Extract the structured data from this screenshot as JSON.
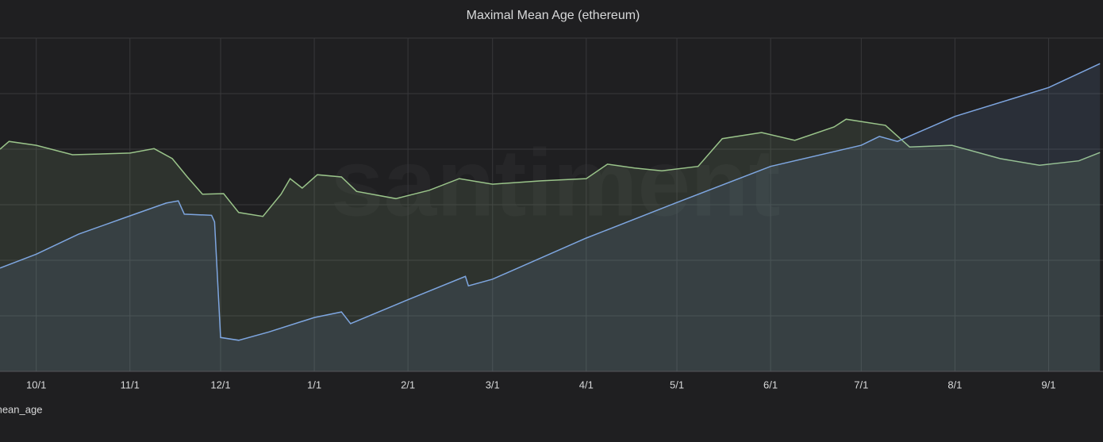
{
  "chart_data": {
    "type": "area",
    "title": "Maximal Mean Age (ethereum)",
    "watermark": "santiment",
    "xlim": [
      -12,
      353
    ],
    "xticks": [
      {
        "value": 0,
        "label": "10/1"
      },
      {
        "value": 31,
        "label": "11/1"
      },
      {
        "value": 61,
        "label": "12/1"
      },
      {
        "value": 92,
        "label": "1/1"
      },
      {
        "value": 123,
        "label": "2/1"
      },
      {
        "value": 151,
        "label": "3/1"
      },
      {
        "value": 182,
        "label": "4/1"
      },
      {
        "value": 212,
        "label": "5/1"
      },
      {
        "value": 243,
        "label": "6/1"
      },
      {
        "value": 273,
        "label": "7/1"
      },
      {
        "value": 304,
        "label": "8/1"
      },
      {
        "value": 335,
        "label": "9/1"
      }
    ],
    "ylim": [
      0,
      6
    ],
    "yticks": [
      0,
      1,
      2,
      3,
      4,
      5,
      6
    ],
    "grid": true,
    "series": [
      {
        "color": "#9ac48a",
        "x": [
          -12,
          -9,
          0,
          12,
          31,
          39,
          45,
          50,
          55,
          62,
          67,
          75,
          81,
          84,
          88,
          93,
          101,
          106,
          119,
          130,
          140,
          151,
          167,
          182,
          189,
          198,
          207,
          219,
          227,
          240,
          251,
          264,
          268,
          281,
          289,
          303,
          319,
          332,
          345,
          352
        ],
        "values": [
          4.0,
          4.14,
          4.07,
          3.9,
          3.93,
          4.01,
          3.83,
          3.5,
          3.19,
          3.2,
          2.86,
          2.79,
          3.19,
          3.47,
          3.3,
          3.54,
          3.5,
          3.24,
          3.11,
          3.26,
          3.47,
          3.37,
          3.43,
          3.47,
          3.73,
          3.66,
          3.61,
          3.69,
          4.19,
          4.3,
          4.16,
          4.4,
          4.54,
          4.43,
          4.04,
          4.07,
          3.83,
          3.71,
          3.79,
          3.94
        ]
      },
      {
        "name": "mean_age",
        "color": "#7ea6e0",
        "x": [
          -12,
          0,
          14,
          31,
          43,
          47,
          49,
          58,
          59,
          61,
          67,
          77,
          92,
          101,
          104,
          123,
          142,
          143,
          151,
          182,
          212,
          243,
          273,
          279,
          285,
          304,
          335,
          352
        ],
        "values": [
          1.86,
          2.11,
          2.47,
          2.8,
          3.03,
          3.07,
          2.83,
          2.81,
          2.69,
          0.61,
          0.56,
          0.71,
          0.97,
          1.07,
          0.86,
          1.29,
          1.71,
          1.54,
          1.66,
          2.4,
          3.04,
          3.69,
          4.07,
          4.23,
          4.14,
          4.59,
          5.11,
          5.54
        ]
      }
    ]
  }
}
